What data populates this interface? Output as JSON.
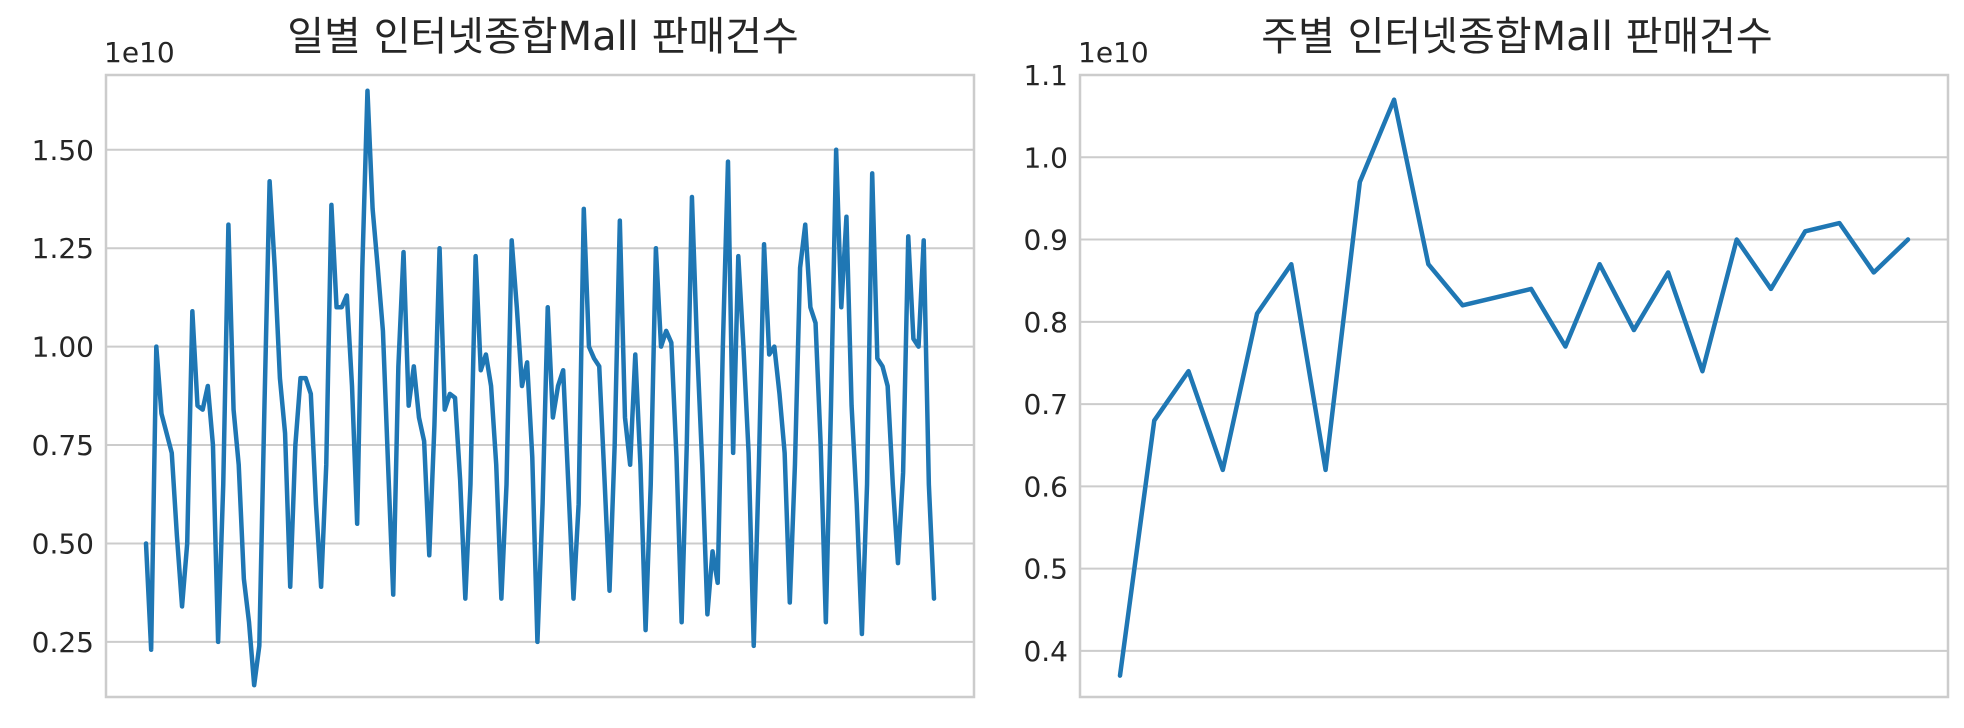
{
  "colors": {
    "line": "#1f77b4",
    "grid": "#cccccc"
  },
  "chart_data": [
    {
      "type": "line",
      "title": "일별 인터넷종합Mall 판매건수",
      "offset_label": "1e10",
      "xlabel": "",
      "ylabel": "",
      "ylim": [
        0.11,
        1.69
      ],
      "yticks": [
        0.25,
        0.5,
        0.75,
        1.0,
        1.25,
        1.5
      ],
      "ytick_labels": [
        "0.25",
        "0.50",
        "0.75",
        "1.00",
        "1.25",
        "1.50"
      ],
      "grid": "horizontal",
      "series": [
        {
          "values": [
            0.5,
            0.23,
            1.0,
            0.83,
            0.78,
            0.73,
            0.52,
            0.34,
            0.5,
            1.09,
            0.85,
            0.84,
            0.9,
            0.75,
            0.25,
            0.65,
            1.31,
            0.84,
            0.7,
            0.41,
            0.3,
            0.14,
            0.24,
            0.85,
            1.42,
            1.2,
            0.92,
            0.78,
            0.39,
            0.75,
            0.92,
            0.92,
            0.88,
            0.6,
            0.39,
            0.7,
            1.36,
            1.1,
            1.1,
            1.13,
            0.9,
            0.55,
            1.2,
            1.65,
            1.35,
            1.2,
            1.04,
            0.7,
            0.37,
            0.95,
            1.24,
            0.85,
            0.95,
            0.82,
            0.76,
            0.47,
            0.8,
            1.25,
            0.84,
            0.88,
            0.87,
            0.66,
            0.36,
            0.65,
            1.23,
            0.94,
            0.98,
            0.9,
            0.7,
            0.36,
            0.65,
            1.27,
            1.1,
            0.9,
            0.96,
            0.72,
            0.25,
            0.6,
            1.1,
            0.82,
            0.9,
            0.94,
            0.65,
            0.36,
            0.6,
            1.35,
            1.0,
            0.97,
            0.95,
            0.67,
            0.38,
            0.75,
            1.32,
            0.82,
            0.7,
            0.98,
            0.7,
            0.28,
            0.65,
            1.25,
            1.0,
            1.04,
            1.01,
            0.72,
            0.3,
            0.75,
            1.38,
            1.0,
            0.7,
            0.32,
            0.48,
            0.4,
            1.0,
            1.47,
            0.73,
            1.23,
            1.0,
            0.73,
            0.24,
            0.7,
            1.26,
            0.98,
            1.0,
            0.88,
            0.73,
            0.35,
            0.7,
            1.2,
            1.31,
            1.1,
            1.06,
            0.75,
            0.3,
            0.85,
            1.5,
            1.1,
            1.33,
            0.85,
            0.6,
            0.27,
            0.65,
            1.44,
            0.97,
            0.95,
            0.9,
            0.65,
            0.45,
            0.68,
            1.28,
            1.02,
            1.0,
            1.27,
            0.65,
            0.36
          ]
        }
      ]
    },
    {
      "type": "line",
      "title": "주별 인터넷종합Mall 판매건수",
      "offset_label": "1e10",
      "xlabel": "",
      "ylabel": "",
      "ylim": [
        0.344,
        1.1
      ],
      "yticks": [
        0.4,
        0.5,
        0.6,
        0.7,
        0.8,
        0.9,
        1.0,
        1.1
      ],
      "ytick_labels": [
        "0.4",
        "0.5",
        "0.6",
        "0.7",
        "0.8",
        "0.9",
        "1.0",
        "1.1"
      ],
      "grid": "horizontal",
      "series": [
        {
          "values": [
            0.37,
            0.68,
            0.74,
            0.62,
            0.81,
            0.87,
            0.62,
            0.97,
            1.07,
            0.87,
            0.82,
            0.83,
            0.84,
            0.77,
            0.87,
            0.79,
            0.86,
            0.74,
            0.9,
            0.84,
            0.91,
            0.92,
            0.86,
            0.9
          ]
        }
      ]
    }
  ]
}
